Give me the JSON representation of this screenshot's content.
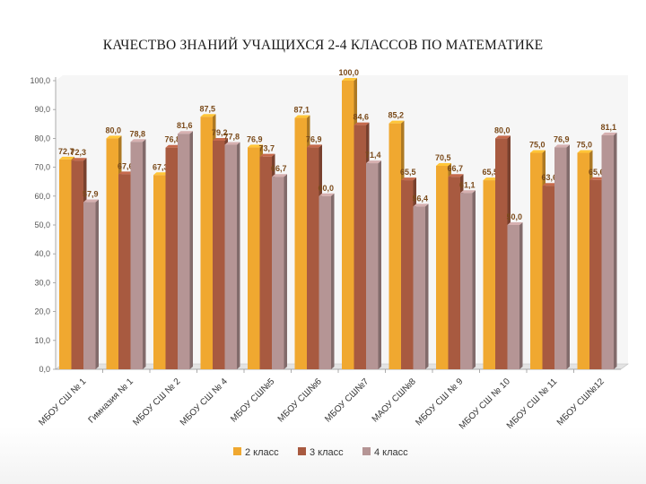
{
  "chart_data": {
    "type": "bar",
    "title": "КАЧЕСТВО ЗНАНИЙ УЧАЩИХСЯ 2-4 КЛАССОВ ПО МАТЕМАТИКЕ",
    "categories": [
      "МБОУ СШ № 1",
      "Гимназия № 1",
      "МБОУ СШ № 2",
      "МБОУ СШ № 4",
      "МБОУ СШ№5",
      "МБОУ СШ№6",
      "МБОУ СШ№7",
      "МАОУ СШ№8",
      "МБОУ СШ № 9",
      "МБОУ СШ № 10",
      "МБОУ СШ № 11",
      "МБОУ СШ№12"
    ],
    "series": [
      {
        "name": "2 класс",
        "color": "#F0A830",
        "values": [
          72.7,
          80.0,
          67.3,
          87.5,
          76.9,
          87.1,
          100.0,
          85.2,
          70.5,
          65.5,
          75.0,
          75.0
        ]
      },
      {
        "name": "3 класс",
        "color": "#A85A40",
        "values": [
          72.3,
          67.6,
          76.8,
          79.2,
          73.7,
          76.9,
          84.6,
          65.5,
          66.7,
          80.0,
          63.6,
          65.6
        ]
      },
      {
        "name": "4 класс",
        "color": "#B59595",
        "values": [
          57.9,
          78.8,
          81.6,
          77.8,
          66.7,
          60.0,
          71.4,
          56.4,
          61.1,
          50.0,
          76.9,
          81.1
        ]
      }
    ],
    "value_labels": [
      [
        "72,7",
        "80,0",
        "67,3",
        "87,5",
        "76,9",
        "87,1",
        "100,0",
        "85,2",
        "70,5",
        "65,5",
        "75,0",
        "75,0"
      ],
      [
        "72,3",
        "67,6",
        "76,8",
        "79,2",
        "73,7",
        "76,9",
        "84,6",
        "65,5",
        "66,7",
        "80,0",
        "63,6",
        "65,6"
      ],
      [
        "57,9",
        "78,8",
        "81,6",
        "77,8",
        "66,7",
        "60,0",
        "71,4",
        "56,4",
        "61,1",
        "50,0",
        "76,9",
        "81,1"
      ]
    ],
    "y_ticks": [
      "0,0",
      "10,0",
      "20,0",
      "30,0",
      "40,0",
      "50,0",
      "60,0",
      "70,0",
      "80,0",
      "90,0",
      "100,0"
    ],
    "ylim": [
      0,
      100
    ],
    "grid": false,
    "legend_position": "bottom"
  }
}
